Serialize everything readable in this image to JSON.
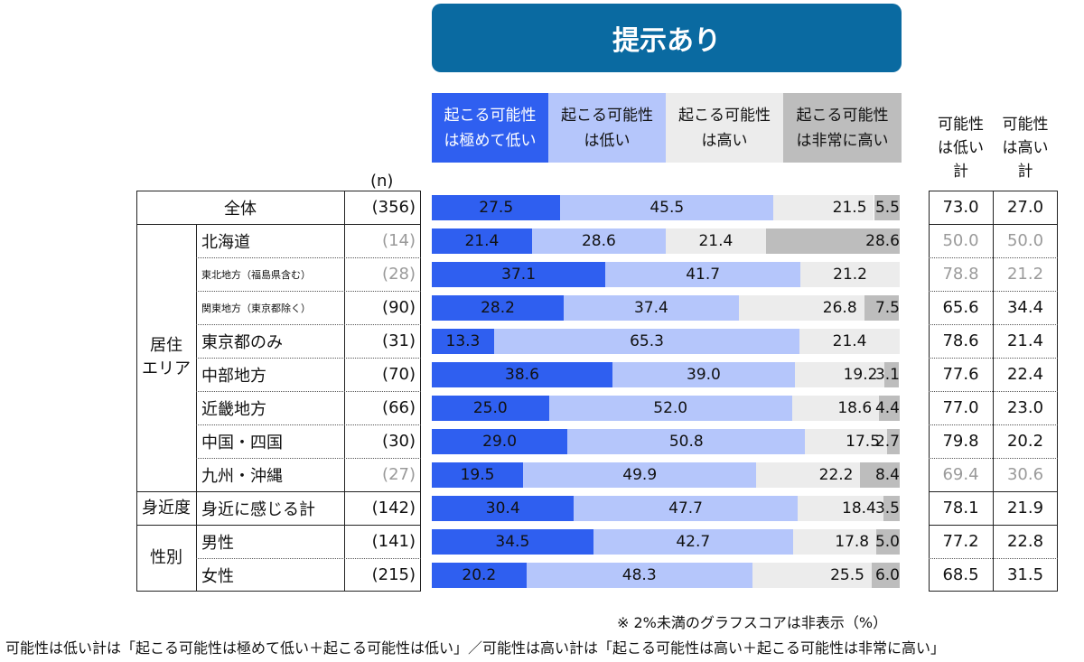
{
  "banner": "提示あり",
  "n_header": "(n)",
  "legend": [
    {
      "label": "起こる可能性\nは極めて低い",
      "color": "#2f5ff0",
      "text_color": "#ffffff"
    },
    {
      "label": "起こる可能性\nは低い",
      "color": "#b5c6fb",
      "text_color": "#111111"
    },
    {
      "label": "起こる可能性\nは高い",
      "color": "#ececec",
      "text_color": "#111111"
    },
    {
      "label": "起こる可能性\nは非常に高い",
      "color": "#bdbdbd",
      "text_color": "#111111"
    }
  ],
  "summary_headers": [
    "可能性\nは低い\n計",
    "可能性\nは高い\n計"
  ],
  "groups": [
    {
      "label": "",
      "rows": [
        0
      ]
    },
    {
      "label": "居住\nエリア",
      "rows": [
        1,
        2,
        3,
        4,
        5,
        6,
        7,
        8
      ]
    },
    {
      "label": "身近度",
      "rows": [
        9
      ]
    },
    {
      "label": "性別",
      "rows": [
        10,
        11
      ]
    }
  ],
  "chart_data": {
    "type": "bar",
    "stacked": true,
    "orientation": "horizontal",
    "unit": "%",
    "series_names": [
      "起こる可能性は極めて低い",
      "起こる可能性は低い",
      "起こる可能性は高い",
      "起こる可能性は非常に高い"
    ],
    "rows": [
      {
        "label": "全体",
        "n": "(356)",
        "values": [
          27.5,
          45.5,
          21.5,
          5.5
        ],
        "low_total": "73.0",
        "high_total": "27.0",
        "small_n": false
      },
      {
        "label": "北海道",
        "n": "(14)",
        "values": [
          21.4,
          28.6,
          21.4,
          28.6
        ],
        "low_total": "50.0",
        "high_total": "50.0",
        "small_n": true
      },
      {
        "label": "東北地方（福島県含む）",
        "n": "(28)",
        "values": [
          37.1,
          41.7,
          21.2,
          0
        ],
        "low_total": "78.8",
        "high_total": "21.2",
        "small_n": true,
        "small_label": true
      },
      {
        "label": "関東地方（東京都除く）",
        "n": "(90)",
        "values": [
          28.2,
          37.4,
          26.8,
          7.5
        ],
        "low_total": "65.6",
        "high_total": "34.4",
        "small_n": false,
        "small_label": true
      },
      {
        "label": "東京都のみ",
        "n": "(31)",
        "values": [
          13.3,
          65.3,
          21.4,
          0
        ],
        "low_total": "78.6",
        "high_total": "21.4",
        "small_n": false
      },
      {
        "label": "中部地方",
        "n": "(70)",
        "values": [
          38.6,
          39.0,
          19.2,
          3.1
        ],
        "low_total": "77.6",
        "high_total": "22.4",
        "small_n": false
      },
      {
        "label": "近畿地方",
        "n": "(66)",
        "values": [
          25.0,
          52.0,
          18.6,
          4.4
        ],
        "low_total": "77.0",
        "high_total": "23.0",
        "small_n": false
      },
      {
        "label": "中国・四国",
        "n": "(30)",
        "values": [
          29.0,
          50.8,
          17.5,
          2.7
        ],
        "low_total": "79.8",
        "high_total": "20.2",
        "small_n": false
      },
      {
        "label": "九州・沖縄",
        "n": "(27)",
        "values": [
          19.5,
          49.9,
          22.2,
          8.4
        ],
        "low_total": "69.4",
        "high_total": "30.6",
        "small_n": true
      },
      {
        "label": "身近に感じる計",
        "n": "(142)",
        "values": [
          30.4,
          47.7,
          18.4,
          3.5
        ],
        "low_total": "78.1",
        "high_total": "21.9",
        "small_n": false
      },
      {
        "label": "男性",
        "n": "(141)",
        "values": [
          34.5,
          42.7,
          17.8,
          5.0
        ],
        "low_total": "77.2",
        "high_total": "22.8",
        "small_n": false
      },
      {
        "label": "女性",
        "n": "(215)",
        "values": [
          20.2,
          48.3,
          25.5,
          6.0
        ],
        "low_total": "68.5",
        "high_total": "31.5",
        "small_n": false
      }
    ]
  },
  "footnote_1": "※ 2%未満のグラフスコアは非表示（%）",
  "footnote_2": "可能性は低い計は「起こる可能性は極めて低い＋起こる可能性は低い」／可能性は高い計は「起こる可能性は高い＋起こる可能性は非常に高い」"
}
